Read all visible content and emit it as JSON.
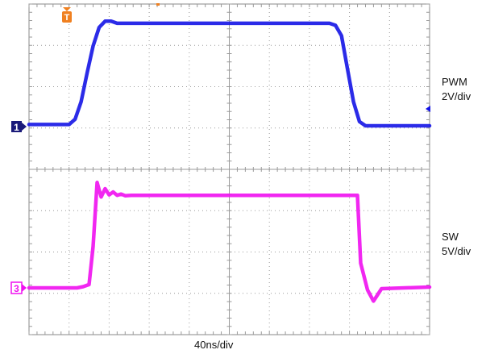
{
  "chart_data": {
    "type": "line",
    "title": "",
    "xlabel": "40ns/div",
    "x_divisions": 10,
    "xlim": [
      0,
      10
    ],
    "grid": true,
    "series": [
      {
        "name": "PWM",
        "channel": "1",
        "scale_label": "2V/div",
        "color": "#1414e6",
        "y_divisions": 4,
        "ylim": [
          0,
          4
        ],
        "x": [
          0,
          1.0,
          1.15,
          1.3,
          1.45,
          1.6,
          1.75,
          1.9,
          2.05,
          2.2,
          2.35,
          2.5,
          7.5,
          7.65,
          7.8,
          7.95,
          8.1,
          8.25,
          8.4,
          10
        ],
        "y": [
          0.05,
          0.05,
          0.18,
          0.6,
          1.3,
          1.95,
          2.4,
          2.55,
          2.55,
          2.5,
          2.5,
          2.5,
          2.5,
          2.45,
          2.2,
          1.4,
          0.6,
          0.12,
          0.02,
          0.02
        ]
      },
      {
        "name": "SW",
        "channel": "3",
        "scale_label": "5V/div",
        "color": "#f010f0",
        "y_divisions": 4,
        "ylim": [
          0,
          4
        ],
        "x": [
          0,
          1.2,
          1.35,
          1.5,
          1.6,
          1.7,
          1.8,
          1.9,
          2.0,
          2.1,
          2.2,
          2.3,
          2.4,
          2.55,
          2.7,
          8.1,
          8.2,
          8.28,
          8.45,
          8.6,
          8.8,
          10
        ],
        "y": [
          0.0,
          0.0,
          0.03,
          0.08,
          1.0,
          2.55,
          2.2,
          2.4,
          2.25,
          2.32,
          2.24,
          2.27,
          2.23,
          2.24,
          2.24,
          2.24,
          2.24,
          0.6,
          -0.05,
          -0.32,
          -0.02,
          0.02
        ]
      }
    ],
    "trigger_marker": "T"
  }
}
